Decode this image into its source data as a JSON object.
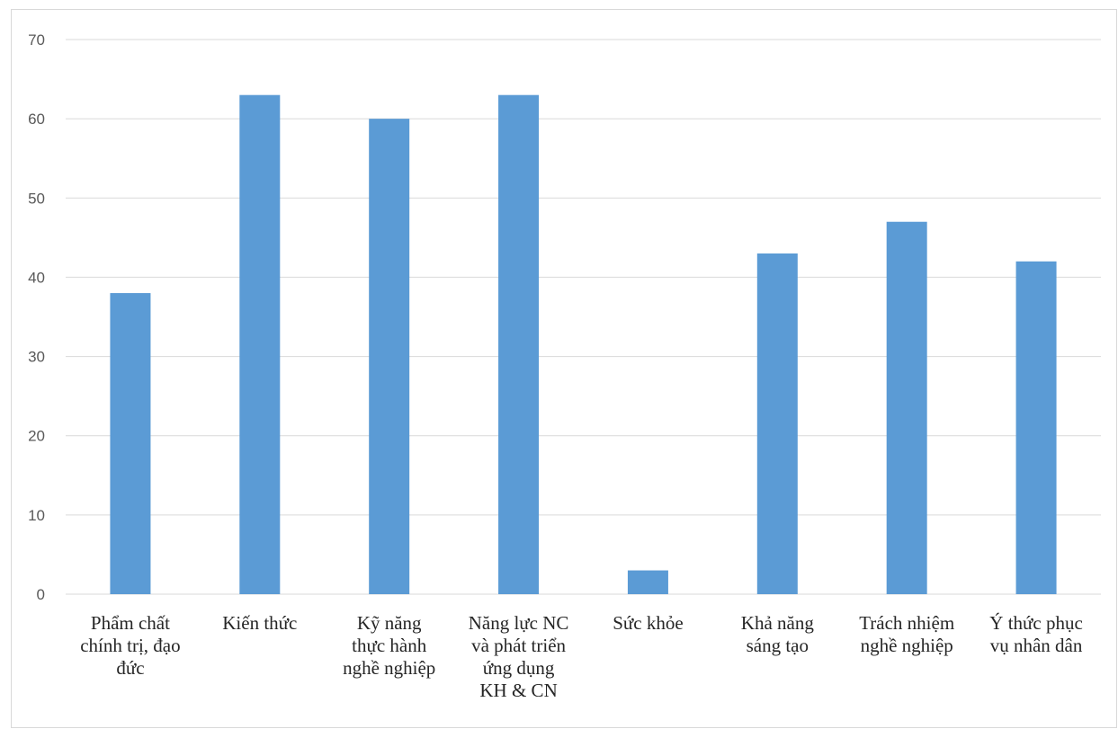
{
  "chart_data": {
    "type": "bar",
    "title": "",
    "xlabel": "",
    "ylabel": "",
    "ylim": [
      0,
      70
    ],
    "yticks": [
      0,
      10,
      20,
      30,
      40,
      50,
      60,
      70
    ],
    "grid": true,
    "legend": "none",
    "categories": [
      "Phẩm chất chính trị, đạo đức",
      "Kiến thức",
      "Kỹ năng thực hành nghề nghiệp",
      "Năng lực NC và phát triển ứng dụng KH & CN",
      "Sức khỏe",
      "Khả năng sáng tạo",
      "Trách nhiệm nghề nghiệp",
      "Ý thức phục vụ nhân dân"
    ],
    "category_lines": [
      [
        "Phẩm chất",
        "chính trị, đạo",
        "đức"
      ],
      [
        "Kiến thức"
      ],
      [
        "Kỹ năng",
        "thực hành",
        "nghề nghiệp"
      ],
      [
        "Năng lực NC",
        "và phát triển",
        "ứng dụng",
        "KH & CN"
      ],
      [
        "Sức khỏe"
      ],
      [
        "Khả năng",
        "sáng tạo"
      ],
      [
        "Trách nhiệm",
        "nghề nghiệp"
      ],
      [
        "Ý thức phục",
        "vụ nhân dân"
      ]
    ],
    "series": [
      {
        "values": [
          38,
          63,
          60,
          63,
          3,
          43,
          47,
          42
        ]
      }
    ],
    "colors": {
      "bar": "#5B9BD5",
      "grid": "#d9d9d9",
      "axis_text": "#595959",
      "category_text": "#262626"
    }
  }
}
